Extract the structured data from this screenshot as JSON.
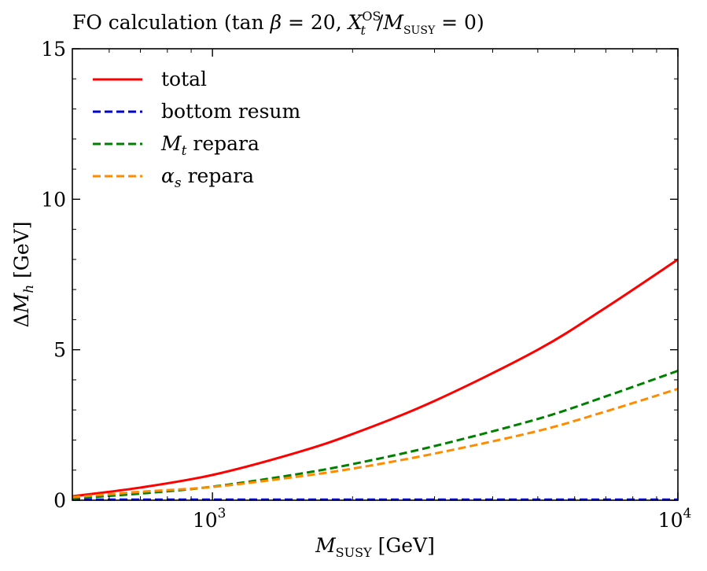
{
  "chart_data": {
    "type": "line",
    "title": {
      "prefix": "FO calculation (tan ",
      "beta": "β",
      "eq1": " = 20, ",
      "X": "X",
      "X_sup": "OS",
      "X_sub": "t",
      "slash": "/",
      "M": "M",
      "M_sub": "SUSY",
      "suffix": " = 0)"
    },
    "xlabel": {
      "M": "M",
      "sub": "SUSY",
      "unit": " [GeV]"
    },
    "ylabel": {
      "delta": "Δ",
      "M": "M",
      "sub": "h",
      "unit": " [GeV]"
    },
    "xscale": "log",
    "xlim": [
      500,
      10000
    ],
    "ylim": [
      0,
      15
    ],
    "xticks": [
      {
        "value": 1000,
        "base": "10",
        "exp": "3"
      },
      {
        "value": 10000,
        "base": "10",
        "exp": "4"
      }
    ],
    "yticks": [
      {
        "value": 0,
        "label": "0"
      },
      {
        "value": 5,
        "label": "5"
      },
      {
        "value": 10,
        "label": "10"
      },
      {
        "value": 15,
        "label": "15"
      }
    ],
    "legend_position": "top-left",
    "x": [
      500,
      700,
      1000,
      1500,
      2000,
      3000,
      5000,
      7000,
      10000
    ],
    "series": [
      {
        "name": "total",
        "legend_main": "total",
        "legend_sub": "",
        "legend_rest": "",
        "color": "#ff0000",
        "dash": "solid",
        "values": [
          0.13,
          0.42,
          0.84,
          1.56,
          2.2,
          3.3,
          5.0,
          6.4,
          8.0
        ]
      },
      {
        "name": "bottom resum",
        "legend_main": "bottom resum",
        "legend_sub": "",
        "legend_rest": "",
        "color": "#0000cc",
        "dash": "dashed",
        "values": [
          0.02,
          0.02,
          0.02,
          0.02,
          0.02,
          0.02,
          0.02,
          0.02,
          0.02
        ]
      },
      {
        "name": "M_t repara",
        "legend_main": "M",
        "legend_sub": "t",
        "legend_rest": " repara",
        "color": "#008000",
        "dash": "dashed",
        "values": [
          0.06,
          0.22,
          0.45,
          0.85,
          1.2,
          1.8,
          2.7,
          3.45,
          4.3
        ]
      },
      {
        "name": "alpha_s repara",
        "legend_main": "α",
        "legend_sub": "s",
        "legend_rest": " repara",
        "color": "#ff8c00",
        "dash": "dashed",
        "values": [
          0.1,
          0.28,
          0.44,
          0.77,
          1.05,
          1.55,
          2.3,
          2.95,
          3.7
        ]
      }
    ]
  }
}
